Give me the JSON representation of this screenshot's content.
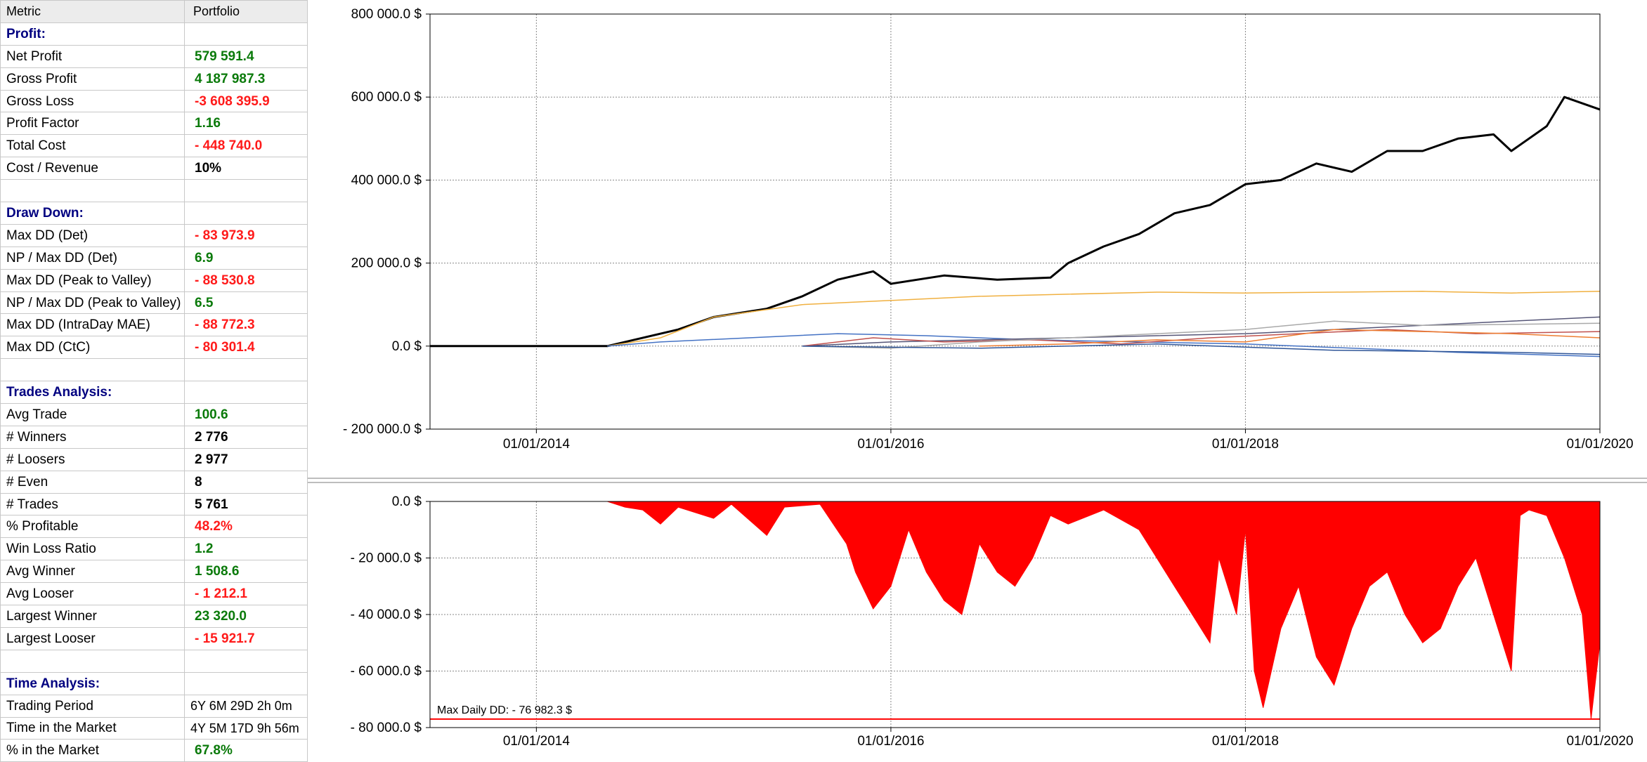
{
  "table": {
    "headers": [
      "Metric",
      "Portfolio"
    ],
    "rows": [
      {
        "type": "section",
        "label": "Profit:"
      },
      {
        "type": "row",
        "label": "Net Profit",
        "value": "579 591.4",
        "tone": "pos"
      },
      {
        "type": "row",
        "label": "Gross Profit",
        "value": "4 187 987.3",
        "tone": "pos"
      },
      {
        "type": "row",
        "label": "Gross Loss",
        "value": "-3 608 395.9",
        "tone": "neg"
      },
      {
        "type": "row",
        "label": "Profit Factor",
        "value": "1.16",
        "tone": "pos"
      },
      {
        "type": "row",
        "label": "Total Cost",
        "value": "- 448 740.0",
        "tone": "neg"
      },
      {
        "type": "row",
        "label": "Cost / Revenue",
        "value": "10%",
        "tone": "neu"
      },
      {
        "type": "blank"
      },
      {
        "type": "section",
        "label": "Draw Down:"
      },
      {
        "type": "row",
        "label": "Max DD (Det)",
        "value": "- 83 973.9",
        "tone": "neg"
      },
      {
        "type": "row",
        "label": "NP / Max DD (Det)",
        "value": "6.9",
        "tone": "pos"
      },
      {
        "type": "row",
        "label": "Max DD (Peak to Valley)",
        "value": "- 88 530.8",
        "tone": "neg"
      },
      {
        "type": "row",
        "label": "NP / Max DD (Peak to Valley)",
        "value": "6.5",
        "tone": "pos"
      },
      {
        "type": "row",
        "label": "Max DD (IntraDay MAE)",
        "value": "- 88 772.3",
        "tone": "neg"
      },
      {
        "type": "row",
        "label": "Max DD (CtC)",
        "value": "- 80 301.4",
        "tone": "neg"
      },
      {
        "type": "blank"
      },
      {
        "type": "section",
        "label": "Trades Analysis:"
      },
      {
        "type": "row",
        "label": "Avg Trade",
        "value": "100.6",
        "tone": "pos"
      },
      {
        "type": "row",
        "label": "# Winners",
        "value": "2 776",
        "tone": "neu"
      },
      {
        "type": "row",
        "label": "# Loosers",
        "value": "2 977",
        "tone": "neu"
      },
      {
        "type": "row",
        "label": "# Even",
        "value": "8",
        "tone": "neu"
      },
      {
        "type": "row",
        "label": "# Trades",
        "value": "5 761",
        "tone": "neu"
      },
      {
        "type": "row",
        "label": "% Profitable",
        "value": "48.2%",
        "tone": "neg"
      },
      {
        "type": "row",
        "label": "Win Loss Ratio",
        "value": "1.2",
        "tone": "pos"
      },
      {
        "type": "row",
        "label": "Avg Winner",
        "value": "1 508.6",
        "tone": "pos"
      },
      {
        "type": "row",
        "label": "Avg Looser",
        "value": "- 1 212.1",
        "tone": "neg"
      },
      {
        "type": "row",
        "label": "Largest Winner",
        "value": "23 320.0",
        "tone": "pos"
      },
      {
        "type": "row",
        "label": "Largest Looser",
        "value": "- 15 921.7",
        "tone": "neg"
      },
      {
        "type": "blank"
      },
      {
        "type": "section",
        "label": "Time Analysis:"
      },
      {
        "type": "row",
        "label": "Trading Period",
        "value": "6Y 6M 29D 2h 0m",
        "tone": "plain"
      },
      {
        "type": "row",
        "label": "Time in the Market",
        "value": "4Y 5M 17D 9h 56m",
        "tone": "plain"
      },
      {
        "type": "row",
        "label": "% in the Market",
        "value": "67.8%",
        "tone": "pos"
      }
    ]
  },
  "colors": {
    "equity": "#000000",
    "drawdown": "#ff0000",
    "grid": "#808080",
    "pos": "#0a7a0a",
    "neg": "#ff1a1a",
    "section": "#000080"
  },
  "chart_data": [
    {
      "type": "line",
      "ylim": [
        -200000,
        800000
      ],
      "yticks": [
        800000,
        600000,
        400000,
        200000,
        0,
        -200000
      ],
      "ytick_labels": [
        "800 000.0 $",
        "600 000.0 $",
        "400 000.0 $",
        "200 000.0 $",
        "0.0 $",
        "- 200 000.0 $"
      ],
      "xlim": [
        2013.4,
        2020.0
      ],
      "xticks": [
        2014,
        2016,
        2018,
        2020
      ],
      "xtick_labels": [
        "01/01/2014",
        "01/01/2016",
        "01/01/2018",
        "01/01/2020"
      ],
      "series": [
        {
          "color": "#000000",
          "points": [
            [
              2013.4,
              0
            ],
            [
              2014.4,
              0
            ],
            [
              2014.5,
              10000
            ],
            [
              2014.8,
              40000
            ],
            [
              2015.0,
              70000
            ],
            [
              2015.3,
              90000
            ],
            [
              2015.5,
              120000
            ],
            [
              2015.7,
              160000
            ],
            [
              2015.9,
              180000
            ],
            [
              2016.0,
              150000
            ],
            [
              2016.3,
              170000
            ],
            [
              2016.6,
              160000
            ],
            [
              2016.9,
              165000
            ],
            [
              2017.0,
              200000
            ],
            [
              2017.2,
              240000
            ],
            [
              2017.4,
              270000
            ],
            [
              2017.6,
              320000
            ],
            [
              2017.8,
              340000
            ],
            [
              2018.0,
              390000
            ],
            [
              2018.2,
              400000
            ],
            [
              2018.4,
              440000
            ],
            [
              2018.6,
              420000
            ],
            [
              2018.8,
              470000
            ],
            [
              2019.0,
              470000
            ],
            [
              2019.2,
              500000
            ],
            [
              2019.4,
              510000
            ],
            [
              2019.5,
              470000
            ],
            [
              2019.7,
              530000
            ],
            [
              2019.8,
              600000
            ],
            [
              2020.0,
              570000
            ]
          ]
        },
        {
          "color": "#f0b040",
          "points": [
            [
              2014.4,
              0
            ],
            [
              2014.7,
              20000
            ],
            [
              2015.0,
              70000
            ],
            [
              2015.5,
              100000
            ],
            [
              2016.0,
              110000
            ],
            [
              2016.5,
              120000
            ],
            [
              2017.0,
              125000
            ],
            [
              2017.5,
              130000
            ],
            [
              2018.0,
              128000
            ],
            [
              2018.5,
              130000
            ],
            [
              2019.0,
              132000
            ],
            [
              2019.5,
              128000
            ],
            [
              2020.0,
              132000
            ]
          ]
        },
        {
          "color": "#4472c4",
          "points": [
            [
              2014.4,
              0
            ],
            [
              2014.7,
              10000
            ],
            [
              2015.2,
              20000
            ],
            [
              2015.7,
              30000
            ],
            [
              2016.2,
              25000
            ],
            [
              2016.8,
              15000
            ],
            [
              2017.4,
              10000
            ],
            [
              2018.0,
              5000
            ],
            [
              2018.6,
              -5000
            ],
            [
              2019.2,
              -15000
            ],
            [
              2020.0,
              -25000
            ]
          ]
        },
        {
          "color": "#555577",
          "points": [
            [
              2015.5,
              0
            ],
            [
              2016.0,
              10000
            ],
            [
              2016.5,
              15000
            ],
            [
              2017.0,
              20000
            ],
            [
              2017.5,
              25000
            ],
            [
              2018.0,
              30000
            ],
            [
              2018.5,
              40000
            ],
            [
              2019.0,
              50000
            ],
            [
              2019.5,
              60000
            ],
            [
              2020.0,
              70000
            ]
          ]
        },
        {
          "color": "#c0504d",
          "points": [
            [
              2015.5,
              0
            ],
            [
              2015.9,
              20000
            ],
            [
              2016.3,
              10000
            ],
            [
              2016.8,
              15000
            ],
            [
              2017.3,
              5000
            ],
            [
              2017.8,
              20000
            ],
            [
              2018.3,
              30000
            ],
            [
              2018.8,
              40000
            ],
            [
              2019.3,
              30000
            ],
            [
              2020.0,
              35000
            ]
          ]
        },
        {
          "color": "#ed7d31",
          "points": [
            [
              2016.5,
              0
            ],
            [
              2017.0,
              5000
            ],
            [
              2017.5,
              15000
            ],
            [
              2018.0,
              10000
            ],
            [
              2018.5,
              40000
            ],
            [
              2019.0,
              35000
            ],
            [
              2019.5,
              30000
            ],
            [
              2020.0,
              20000
            ]
          ]
        },
        {
          "color": "#a9a9a9",
          "points": [
            [
              2015.5,
              0
            ],
            [
              2016.0,
              -5000
            ],
            [
              2016.5,
              10000
            ],
            [
              2017.0,
              20000
            ],
            [
              2017.5,
              30000
            ],
            [
              2018.0,
              40000
            ],
            [
              2018.5,
              60000
            ],
            [
              2019.0,
              50000
            ],
            [
              2020.0,
              55000
            ]
          ]
        },
        {
          "color": "#2f5597",
          "points": [
            [
              2015.5,
              0
            ],
            [
              2016.5,
              -5000
            ],
            [
              2017.5,
              5000
            ],
            [
              2018.5,
              -10000
            ],
            [
              2019.5,
              -15000
            ],
            [
              2020.0,
              -20000
            ]
          ]
        }
      ]
    },
    {
      "type": "area",
      "ylim": [
        -80000,
        0
      ],
      "yticks": [
        0,
        -20000,
        -40000,
        -60000,
        -80000
      ],
      "ytick_labels": [
        "0.0 $",
        "- 20 000.0 $",
        "- 40 000.0 $",
        "- 60 000.0 $",
        "- 80 000.0 $"
      ],
      "xlim": [
        2013.4,
        2020.0
      ],
      "xticks": [
        2014,
        2016,
        2018,
        2020
      ],
      "xtick_labels": [
        "01/01/2014",
        "01/01/2016",
        "01/01/2018",
        "01/01/2020"
      ],
      "annotation": "Max Daily DD: - 76 982.3 $",
      "annotation_value": -76982.3,
      "color": "#ff0000",
      "points": [
        [
          2014.4,
          0
        ],
        [
          2014.5,
          -2000
        ],
        [
          2014.6,
          -3000
        ],
        [
          2014.7,
          -8000
        ],
        [
          2014.8,
          -2000
        ],
        [
          2015.0,
          -6000
        ],
        [
          2015.1,
          -1000
        ],
        [
          2015.3,
          -12000
        ],
        [
          2015.4,
          -2000
        ],
        [
          2015.6,
          -1000
        ],
        [
          2015.75,
          -15000
        ],
        [
          2015.8,
          -25000
        ],
        [
          2015.9,
          -38000
        ],
        [
          2016.0,
          -30000
        ],
        [
          2016.1,
          -10000
        ],
        [
          2016.2,
          -25000
        ],
        [
          2016.3,
          -35000
        ],
        [
          2016.4,
          -40000
        ],
        [
          2016.45,
          -28000
        ],
        [
          2016.5,
          -15000
        ],
        [
          2016.6,
          -25000
        ],
        [
          2016.7,
          -30000
        ],
        [
          2016.8,
          -20000
        ],
        [
          2016.9,
          -5000
        ],
        [
          2017.0,
          -8000
        ],
        [
          2017.2,
          -3000
        ],
        [
          2017.4,
          -10000
        ],
        [
          2017.5,
          -20000
        ],
        [
          2017.6,
          -30000
        ],
        [
          2017.7,
          -40000
        ],
        [
          2017.8,
          -50000
        ],
        [
          2017.85,
          -20000
        ],
        [
          2017.95,
          -40000
        ],
        [
          2018.0,
          -10000
        ],
        [
          2018.05,
          -60000
        ],
        [
          2018.1,
          -73000
        ],
        [
          2018.2,
          -45000
        ],
        [
          2018.3,
          -30000
        ],
        [
          2018.4,
          -55000
        ],
        [
          2018.5,
          -65000
        ],
        [
          2018.6,
          -45000
        ],
        [
          2018.7,
          -30000
        ],
        [
          2018.8,
          -25000
        ],
        [
          2018.9,
          -40000
        ],
        [
          2019.0,
          -50000
        ],
        [
          2019.1,
          -45000
        ],
        [
          2019.2,
          -30000
        ],
        [
          2019.3,
          -20000
        ],
        [
          2019.4,
          -40000
        ],
        [
          2019.5,
          -60000
        ],
        [
          2019.55,
          -5000
        ],
        [
          2019.6,
          -3000
        ],
        [
          2019.7,
          -5000
        ],
        [
          2019.8,
          -20000
        ],
        [
          2019.9,
          -40000
        ],
        [
          2019.95,
          -76982
        ],
        [
          2020.0,
          -50000
        ]
      ]
    }
  ]
}
